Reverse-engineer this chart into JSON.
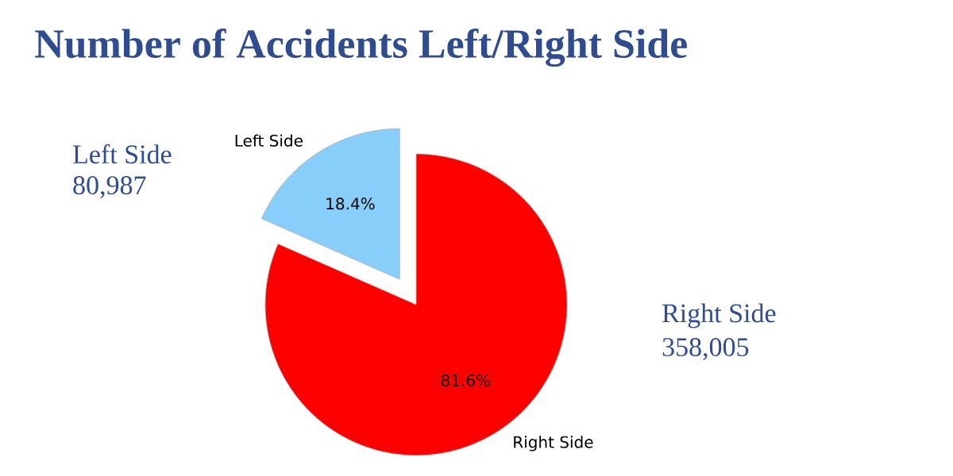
{
  "chart_data": {
    "type": "pie",
    "title": "Number of Accidents Left/Right Side",
    "categories": [
      "Left Side",
      "Right Side"
    ],
    "values": [
      18.4,
      81.6
    ],
    "colors": [
      "#87cefa",
      "#ff0000"
    ],
    "value_labels": [
      "18.4%",
      "81.6%"
    ],
    "annotations": [
      "Left Side",
      "80,987",
      "Right Side",
      "358,005"
    ],
    "legend": false
  }
}
